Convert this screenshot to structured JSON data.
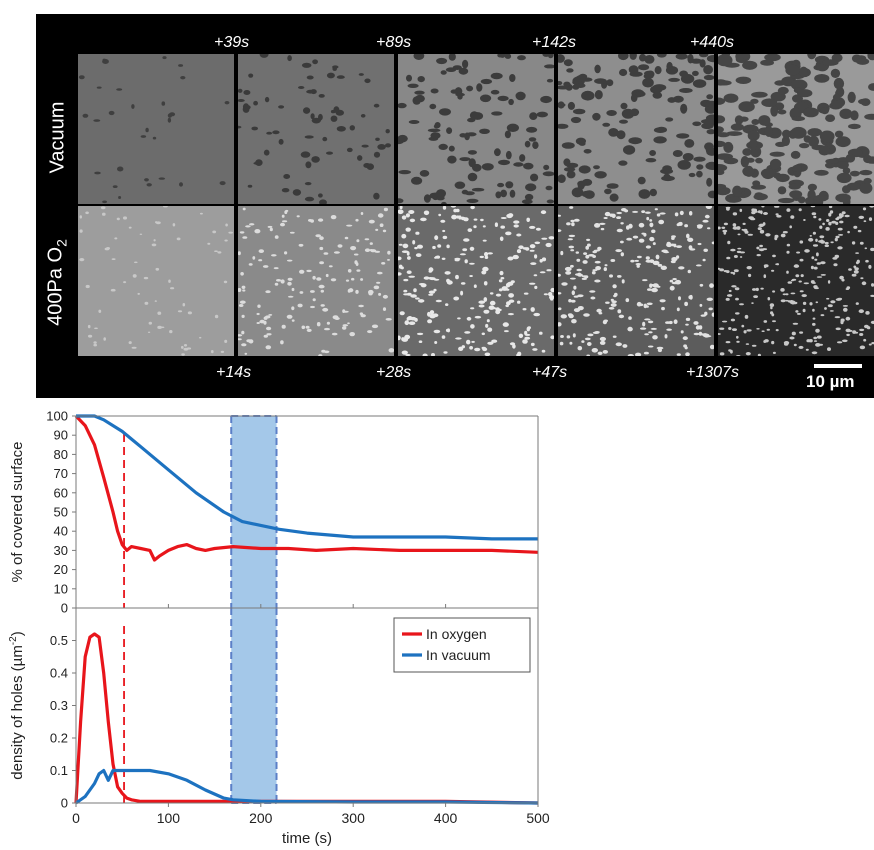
{
  "micrographs": {
    "top_row_label": "Vacuum",
    "bottom_row_label_main": "400Pa O",
    "bottom_row_label_sub": "2",
    "top_times": [
      "+39s",
      "+89s",
      "+142s",
      "+440s"
    ],
    "bottom_times": [
      "+14s",
      "+28s",
      "+47s",
      "+1307s"
    ],
    "scale_bar_label": "10 µm"
  },
  "chart_data": [
    {
      "type": "line",
      "title": "",
      "xlabel": "",
      "ylabel": "% of covered surface",
      "xlim": [
        0,
        500
      ],
      "ylim": [
        0,
        100
      ],
      "yticks": [
        0,
        10,
        20,
        30,
        40,
        50,
        60,
        70,
        80,
        90,
        100
      ],
      "grid": false,
      "series": [
        {
          "name": "In oxygen",
          "color": "#e8151b",
          "x": [
            0,
            10,
            20,
            30,
            40,
            45,
            50,
            55,
            60,
            70,
            80,
            85,
            90,
            100,
            110,
            120,
            130,
            140,
            150,
            170,
            200,
            230,
            260,
            300,
            350,
            400,
            450,
            500
          ],
          "y": [
            100,
            95,
            85,
            68,
            50,
            40,
            33,
            30,
            32,
            31,
            30,
            25,
            27,
            30,
            32,
            33,
            31,
            30,
            31,
            32,
            31,
            31,
            30,
            31,
            30,
            30,
            30,
            29
          ]
        },
        {
          "name": "In vacuum",
          "color": "#1d72c0",
          "x": [
            0,
            20,
            30,
            50,
            70,
            100,
            130,
            160,
            180,
            200,
            220,
            250,
            300,
            350,
            400,
            450,
            500
          ],
          "y": [
            100,
            100,
            98,
            92,
            84,
            72,
            60,
            50,
            45,
            43,
            41,
            39,
            37,
            37,
            37,
            36,
            36
          ]
        }
      ],
      "markers": {
        "vline_x": 52,
        "band_x": [
          168,
          217
        ]
      }
    },
    {
      "type": "line",
      "title": "",
      "xlabel": "time (s)",
      "ylabel_main": "density of holes (µm",
      "ylabel_sup": "-2",
      "ylabel_end": ")",
      "xlim": [
        0,
        500
      ],
      "ylim": [
        0,
        0.6
      ],
      "xticks": [
        0,
        100,
        200,
        300,
        400,
        500
      ],
      "yticks": [
        0,
        0.1,
        0.2,
        0.3,
        0.4,
        0.5
      ],
      "legend_position": "top-right",
      "grid": false,
      "series": [
        {
          "name": "In oxygen",
          "color": "#e8151b",
          "x": [
            0,
            5,
            10,
            15,
            20,
            25,
            30,
            35,
            40,
            45,
            50,
            55,
            60,
            70,
            100,
            200,
            300,
            400,
            500
          ],
          "y": [
            0,
            0.25,
            0.45,
            0.51,
            0.52,
            0.51,
            0.4,
            0.25,
            0.12,
            0.05,
            0.03,
            0.015,
            0.01,
            0.005,
            0.005,
            0.005,
            0.005,
            0.005,
            0.0
          ],
          "label": "In oxygen"
        },
        {
          "name": "In vacuum",
          "color": "#1d72c0",
          "x": [
            0,
            10,
            20,
            25,
            30,
            35,
            40,
            50,
            60,
            80,
            100,
            120,
            140,
            160,
            170,
            200,
            300,
            400,
            500
          ],
          "y": [
            0,
            0.02,
            0.06,
            0.09,
            0.1,
            0.07,
            0.1,
            0.1,
            0.1,
            0.1,
            0.09,
            0.07,
            0.04,
            0.015,
            0.01,
            0.005,
            0.003,
            0.003,
            0.0
          ],
          "label": "In vacuum"
        }
      ],
      "markers": {
        "vline_x": 52,
        "band_x": [
          168,
          217
        ]
      }
    }
  ]
}
